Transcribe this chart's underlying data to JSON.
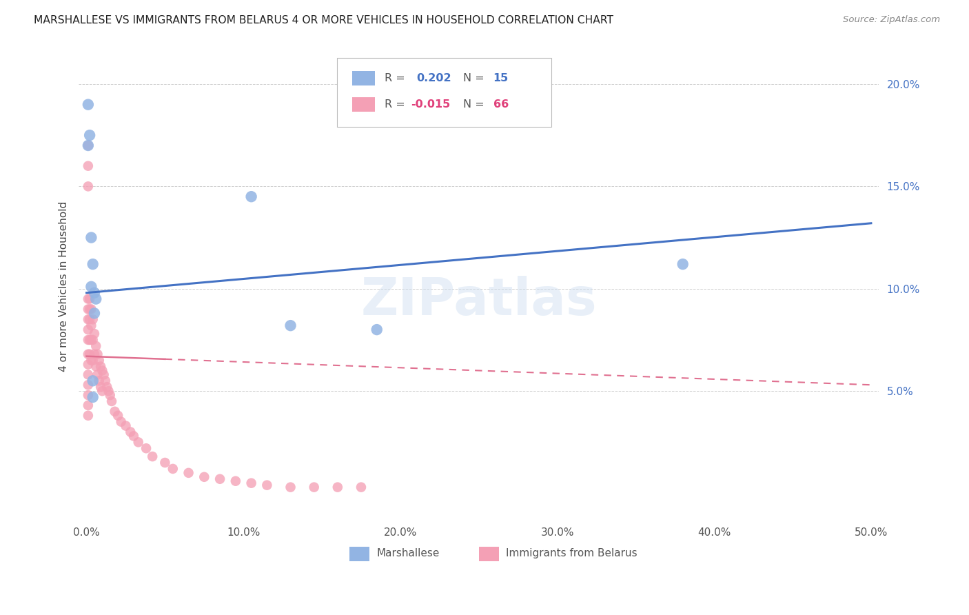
{
  "title": "MARSHALLESE VS IMMIGRANTS FROM BELARUS 4 OR MORE VEHICLES IN HOUSEHOLD CORRELATION CHART",
  "source": "Source: ZipAtlas.com",
  "ylabel": "4 or more Vehicles in Household",
  "marshallese_color": "#92b4e3",
  "belarus_color": "#f4a0b5",
  "marshallese_line_color": "#4472c4",
  "belarus_line_color": "#e07090",
  "watermark": "ZIPatlas",
  "r_blue": "0.202",
  "n_blue": "15",
  "r_pink": "-0.015",
  "n_pink": "66",
  "legend_label1": "Marshallese",
  "legend_label2": "Immigrants from Belarus",
  "xlim": [
    -0.005,
    0.505
  ],
  "ylim": [
    -0.013,
    0.215
  ],
  "yticks": [
    0.05,
    0.1,
    0.15,
    0.2
  ],
  "ytick_labels": [
    "5.0%",
    "10.0%",
    "15.0%",
    "20.0%"
  ],
  "xticks": [
    0.0,
    0.1,
    0.2,
    0.3,
    0.4,
    0.5
  ],
  "xtick_labels": [
    "0.0%",
    "10.0%",
    "20.0%",
    "30.0%",
    "40.0%",
    "50.0%"
  ],
  "marshallese_x": [
    0.001,
    0.001,
    0.002,
    0.003,
    0.003,
    0.004,
    0.005,
    0.005,
    0.006,
    0.105,
    0.13,
    0.185,
    0.38,
    0.004,
    0.004
  ],
  "marshallese_y": [
    0.19,
    0.17,
    0.175,
    0.125,
    0.101,
    0.112,
    0.098,
    0.088,
    0.095,
    0.145,
    0.082,
    0.08,
    0.112,
    0.055,
    0.047
  ],
  "belarus_x": [
    0.001,
    0.001,
    0.001,
    0.001,
    0.001,
    0.001,
    0.001,
    0.001,
    0.001,
    0.001,
    0.001,
    0.001,
    0.002,
    0.002,
    0.002,
    0.002,
    0.002,
    0.003,
    0.003,
    0.003,
    0.003,
    0.004,
    0.004,
    0.004,
    0.005,
    0.005,
    0.006,
    0.006,
    0.007,
    0.007,
    0.008,
    0.008,
    0.009,
    0.009,
    0.01,
    0.01,
    0.011,
    0.012,
    0.013,
    0.014,
    0.015,
    0.016,
    0.018,
    0.02,
    0.022,
    0.025,
    0.028,
    0.03,
    0.033,
    0.038,
    0.042,
    0.05,
    0.055,
    0.065,
    0.075,
    0.085,
    0.095,
    0.105,
    0.115,
    0.13,
    0.145,
    0.16,
    0.175,
    0.001,
    0.001,
    0.001
  ],
  "belarus_y": [
    0.095,
    0.09,
    0.085,
    0.08,
    0.075,
    0.068,
    0.063,
    0.058,
    0.053,
    0.048,
    0.043,
    0.038,
    0.095,
    0.09,
    0.085,
    0.075,
    0.068,
    0.09,
    0.082,
    0.075,
    0.065,
    0.085,
    0.075,
    0.065,
    0.078,
    0.068,
    0.072,
    0.062,
    0.068,
    0.058,
    0.065,
    0.055,
    0.062,
    0.052,
    0.06,
    0.05,
    0.058,
    0.055,
    0.052,
    0.05,
    0.048,
    0.045,
    0.04,
    0.038,
    0.035,
    0.033,
    0.03,
    0.028,
    0.025,
    0.022,
    0.018,
    0.015,
    0.012,
    0.01,
    0.008,
    0.007,
    0.006,
    0.005,
    0.004,
    0.003,
    0.003,
    0.003,
    0.003,
    0.17,
    0.16,
    0.15
  ]
}
